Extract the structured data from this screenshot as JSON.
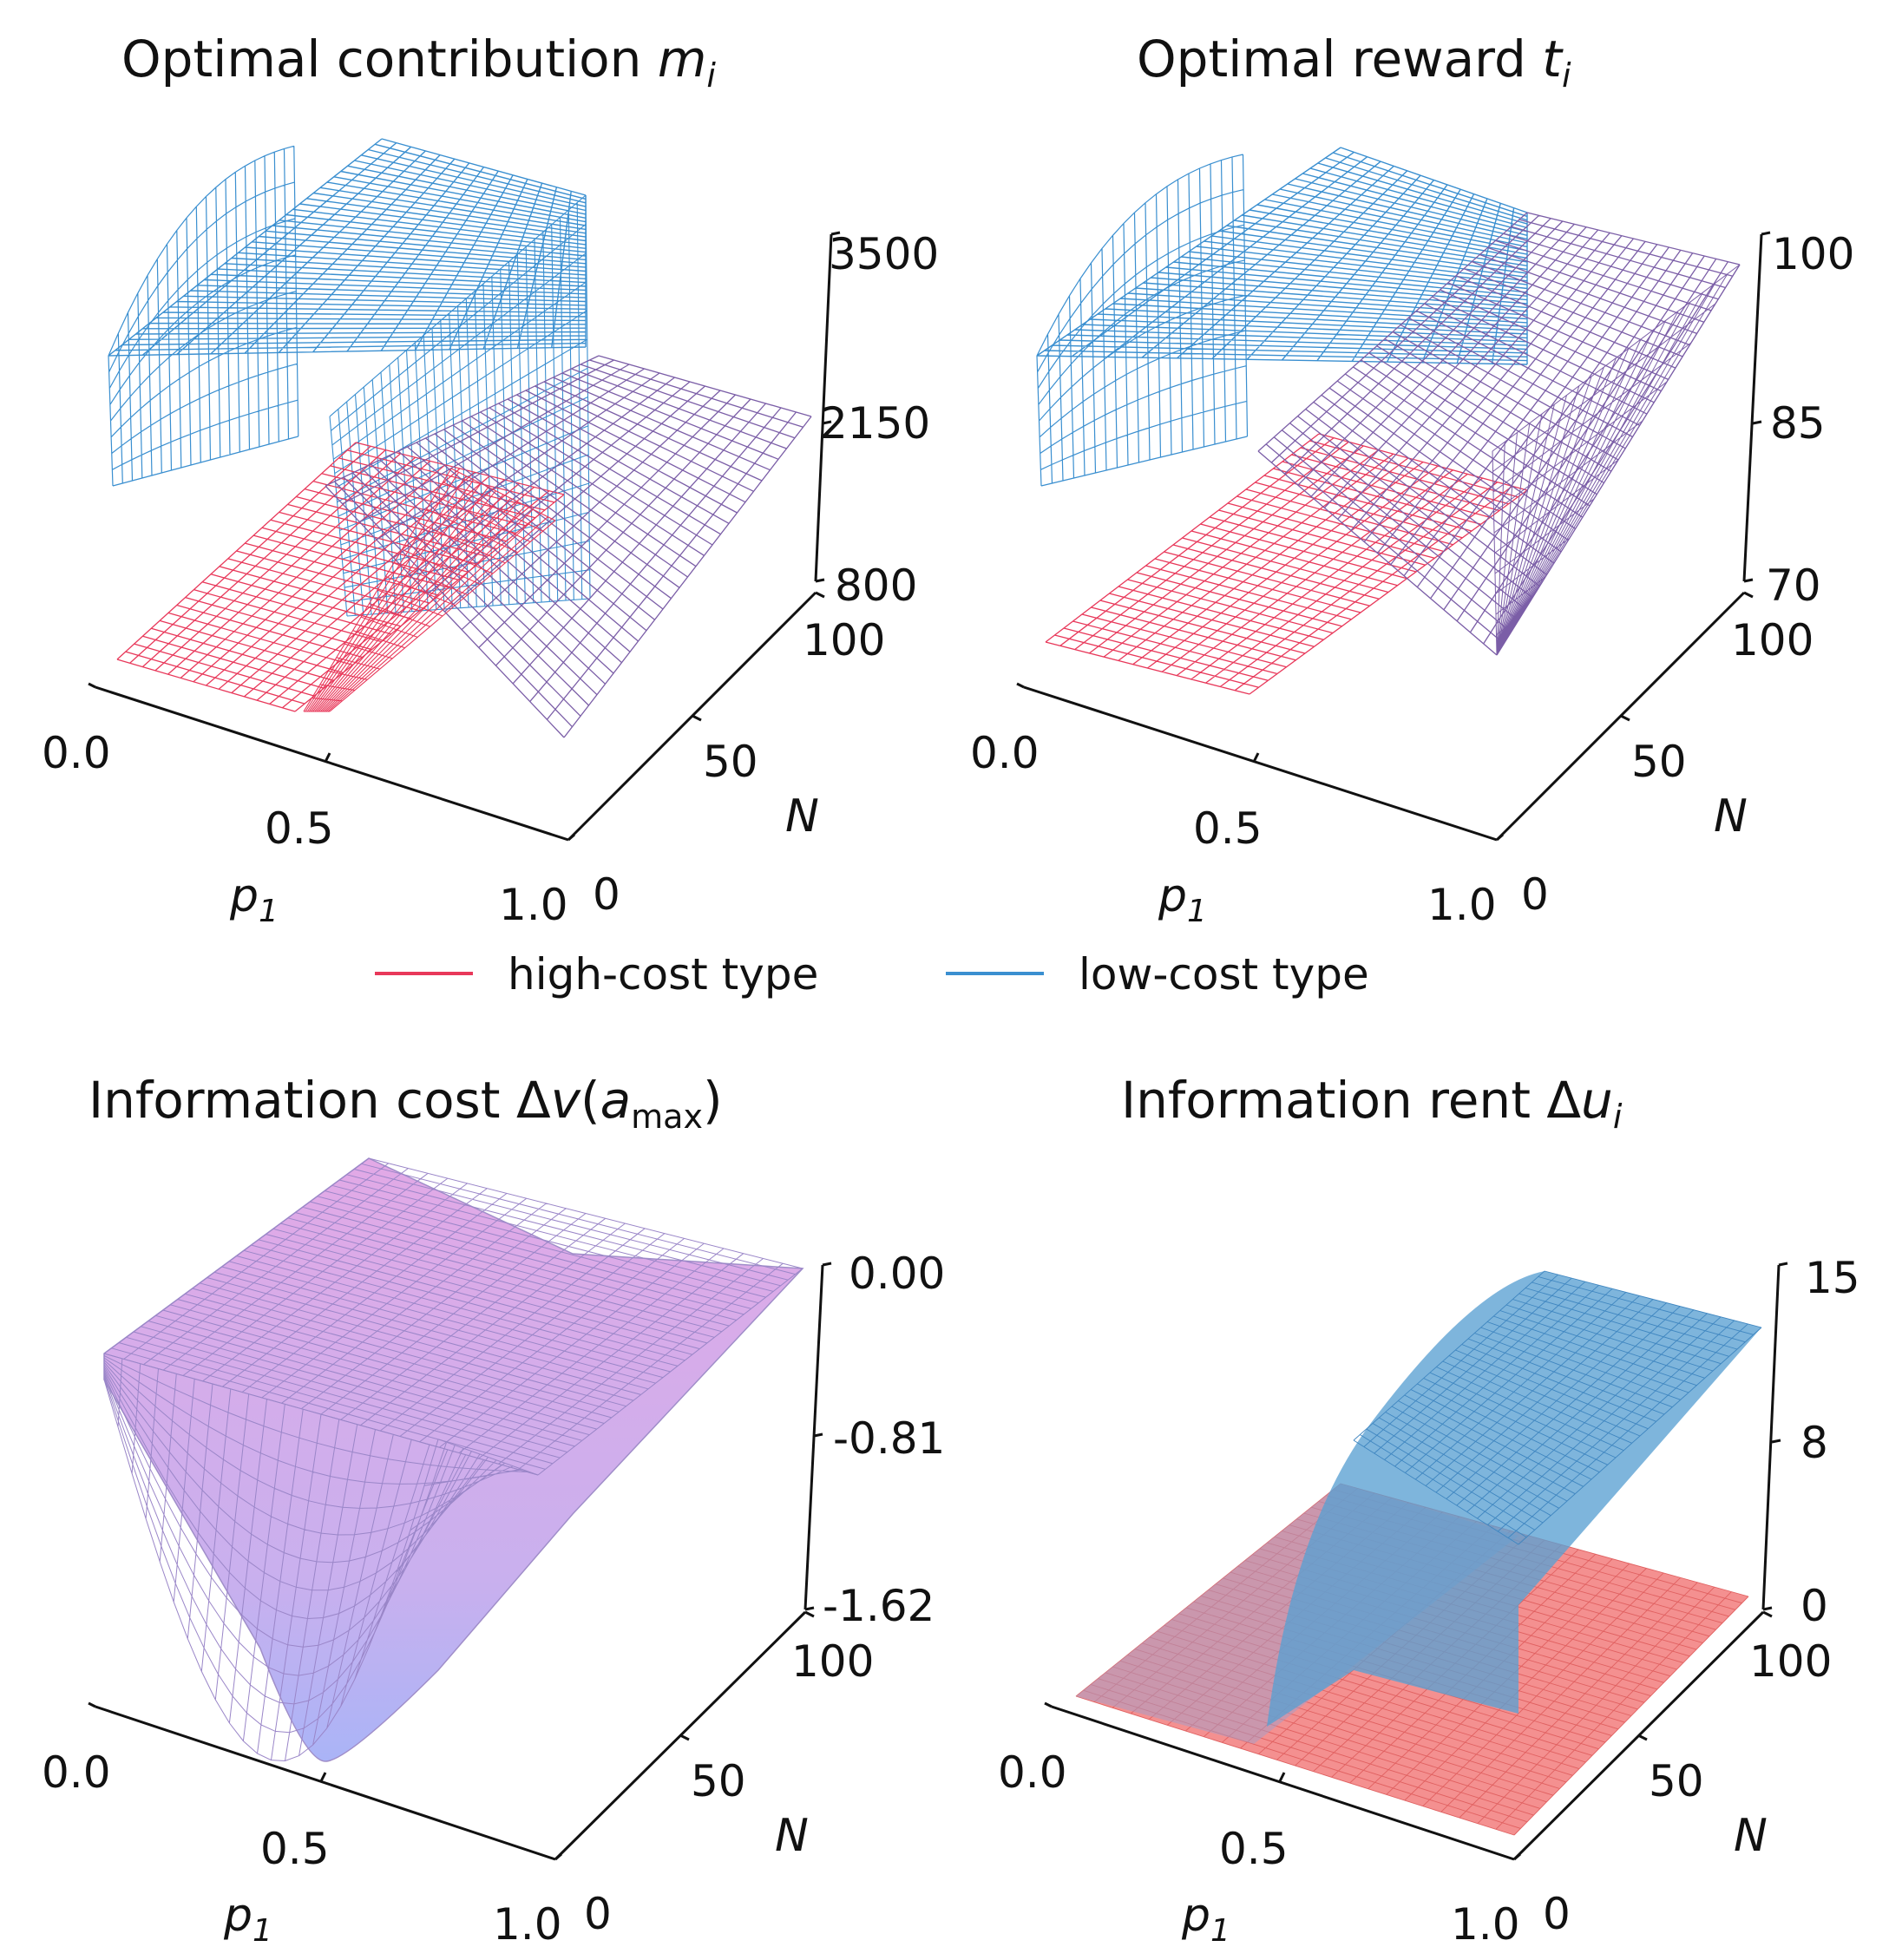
{
  "colors": {
    "high_cost": "#e8385a",
    "low_cost": "#3a8fd0",
    "mixed": "#7b5ea7",
    "info_cost_top": "#e2a9e6",
    "info_cost_bottom": "#aab4f7",
    "rent_high": "#f27c7c",
    "rent_low": "#5aa0d2"
  },
  "legend": [
    {
      "label": "high-cost type",
      "color": "#e8385a"
    },
    {
      "label": "low-cost type",
      "color": "#3a8fd0"
    }
  ],
  "chart_data": [
    {
      "type": "surface-wireframe",
      "title_main": "Optimal contribution ",
      "title_var": "m",
      "title_sub": "i",
      "xlabel": "p",
      "xlabel_sub": "1",
      "ylabel": "N",
      "x_ticks": [
        "0.0",
        "0.5",
        "1.0"
      ],
      "y_ticks": [
        "0",
        "50",
        "100"
      ],
      "z_ticks": [
        "800",
        "2150",
        "3500"
      ],
      "xlim": [
        0.0,
        1.0
      ],
      "ylim": [
        0,
        100
      ],
      "zlim": [
        800,
        3500
      ],
      "series": [
        {
          "name": "high-cost type",
          "style": "wireframe"
        },
        {
          "name": "low-cost type",
          "style": "wireframe"
        }
      ]
    },
    {
      "type": "surface-wireframe",
      "title_main": "Optimal reward ",
      "title_var": "t",
      "title_sub": "i",
      "xlabel": "p",
      "xlabel_sub": "1",
      "ylabel": "N",
      "x_ticks": [
        "0.0",
        "0.5",
        "1.0"
      ],
      "y_ticks": [
        "0",
        "50",
        "100"
      ],
      "z_ticks": [
        "70",
        "85",
        "100"
      ],
      "xlim": [
        0.0,
        1.0
      ],
      "ylim": [
        0,
        100
      ],
      "zlim": [
        70,
        100
      ],
      "series": [
        {
          "name": "high-cost type",
          "style": "wireframe"
        },
        {
          "name": "low-cost type",
          "style": "wireframe"
        }
      ]
    },
    {
      "type": "surface",
      "title_main": "Information cost Δ",
      "title_var": "v",
      "title_paren_open": "(",
      "title_var2": "a",
      "title_sub": "max",
      "title_paren_close": ")",
      "xlabel": "p",
      "xlabel_sub": "1",
      "ylabel": "N",
      "x_ticks": [
        "0.0",
        "0.5",
        "1.0"
      ],
      "y_ticks": [
        "0",
        "50",
        "100"
      ],
      "z_ticks": [
        "-1.62",
        "-0.81",
        "0.00"
      ],
      "xlim": [
        0.0,
        1.0
      ],
      "ylim": [
        0,
        100
      ],
      "zlim": [
        -1.62,
        0.0
      ]
    },
    {
      "type": "surface",
      "title_main": "Information rent Δ",
      "title_var": "u",
      "title_sub": "i",
      "xlabel": "p",
      "xlabel_sub": "1",
      "ylabel": "N",
      "x_ticks": [
        "0.0",
        "0.5",
        "1.0"
      ],
      "y_ticks": [
        "0",
        "50",
        "100"
      ],
      "z_ticks": [
        "0",
        "8",
        "15"
      ],
      "xlim": [
        0.0,
        1.0
      ],
      "ylim": [
        0,
        100
      ],
      "zlim": [
        0,
        15
      ],
      "series": [
        {
          "name": "high-cost type",
          "style": "surface"
        },
        {
          "name": "low-cost type",
          "style": "surface"
        }
      ]
    }
  ]
}
